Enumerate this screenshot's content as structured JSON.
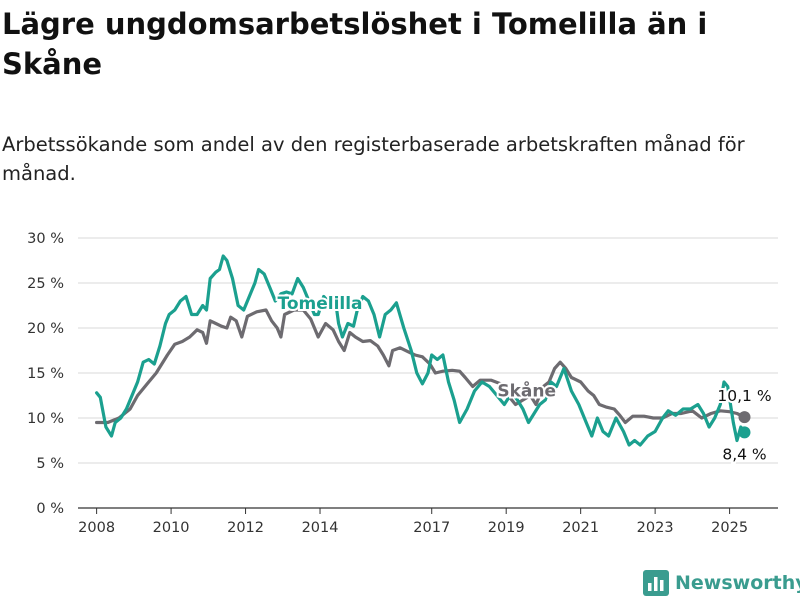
{
  "header": {
    "title": "Lägre ungdomsarbetslöshet i Tomelilla än i Skåne",
    "subtitle": "Arbetssökande som andel av den registerbaserade arbetskraften månad för månad."
  },
  "brand": {
    "name": "Newsworthy",
    "icon": "bar-chart-logo-icon",
    "color": "#3a9c8f"
  },
  "chart_data": {
    "type": "line",
    "ylim": [
      0,
      30
    ],
    "yticks": [
      0,
      5,
      10,
      15,
      20,
      25,
      30
    ],
    "ytick_labels": [
      "0 %",
      "5 %",
      "10 %",
      "15 %",
      "20 %",
      "25 %",
      "30 %"
    ],
    "xlim": [
      2007.5,
      2026.3
    ],
    "xticks": [
      2008,
      2010,
      2012,
      2014,
      2017,
      2019,
      2021,
      2023,
      2025
    ],
    "xtick_labels": [
      "2008",
      "2010",
      "2012",
      "2014",
      "2017",
      "2019",
      "2021",
      "2023",
      "2025"
    ],
    "grid": true,
    "series": [
      {
        "name": "Skåne",
        "color": "#6d6b70",
        "points": [
          [
            2008.0,
            9.5
          ],
          [
            2008.3,
            9.5
          ],
          [
            2008.6,
            10.0
          ],
          [
            2008.9,
            11.0
          ],
          [
            2009.1,
            12.5
          ],
          [
            2009.4,
            14.0
          ],
          [
            2009.6,
            15.0
          ],
          [
            2009.9,
            17.0
          ],
          [
            2010.1,
            18.2
          ],
          [
            2010.3,
            18.5
          ],
          [
            2010.5,
            19.0
          ],
          [
            2010.7,
            19.8
          ],
          [
            2010.85,
            19.5
          ],
          [
            2010.95,
            18.3
          ],
          [
            2011.05,
            20.8
          ],
          [
            2011.2,
            20.5
          ],
          [
            2011.35,
            20.2
          ],
          [
            2011.5,
            20.0
          ],
          [
            2011.6,
            21.2
          ],
          [
            2011.75,
            20.8
          ],
          [
            2011.9,
            19.0
          ],
          [
            2012.05,
            21.3
          ],
          [
            2012.3,
            21.8
          ],
          [
            2012.55,
            22.0
          ],
          [
            2012.7,
            20.8
          ],
          [
            2012.85,
            20.0
          ],
          [
            2012.95,
            19.0
          ],
          [
            2013.05,
            21.5
          ],
          [
            2013.3,
            22.0
          ],
          [
            2013.55,
            22.0
          ],
          [
            2013.75,
            21.0
          ],
          [
            2013.95,
            19.0
          ],
          [
            2014.15,
            20.5
          ],
          [
            2014.35,
            19.8
          ],
          [
            2014.5,
            18.5
          ],
          [
            2014.65,
            17.5
          ],
          [
            2014.8,
            19.5
          ],
          [
            2014.95,
            19.0
          ],
          [
            2015.15,
            18.5
          ],
          [
            2015.35,
            18.6
          ],
          [
            2015.55,
            18.0
          ],
          [
            2015.7,
            17.0
          ],
          [
            2015.85,
            15.8
          ],
          [
            2015.95,
            17.5
          ],
          [
            2016.15,
            17.8
          ],
          [
            2016.35,
            17.4
          ],
          [
            2016.55,
            17.0
          ],
          [
            2016.75,
            16.8
          ],
          [
            2016.95,
            16.0
          ],
          [
            2017.1,
            15.0
          ],
          [
            2017.3,
            15.2
          ],
          [
            2017.55,
            15.3
          ],
          [
            2017.75,
            15.2
          ],
          [
            2017.9,
            14.5
          ],
          [
            2018.1,
            13.5
          ],
          [
            2018.3,
            14.2
          ],
          [
            2018.6,
            14.2
          ],
          [
            2018.85,
            13.8
          ],
          [
            2019.05,
            12.5
          ],
          [
            2019.25,
            11.5
          ],
          [
            2019.45,
            12.0
          ],
          [
            2019.65,
            12.5
          ],
          [
            2019.8,
            11.5
          ],
          [
            2020.0,
            13.5
          ],
          [
            2020.15,
            14.0
          ],
          [
            2020.3,
            15.5
          ],
          [
            2020.45,
            16.2
          ],
          [
            2020.6,
            15.5
          ],
          [
            2020.75,
            14.5
          ],
          [
            2021.0,
            14.0
          ],
          [
            2021.2,
            13.0
          ],
          [
            2021.35,
            12.5
          ],
          [
            2021.5,
            11.5
          ],
          [
            2021.7,
            11.2
          ],
          [
            2021.9,
            11.0
          ],
          [
            2022.05,
            10.3
          ],
          [
            2022.2,
            9.5
          ],
          [
            2022.4,
            10.2
          ],
          [
            2022.7,
            10.2
          ],
          [
            2022.95,
            10.0
          ],
          [
            2023.2,
            10.0
          ],
          [
            2023.45,
            10.5
          ],
          [
            2023.7,
            10.5
          ],
          [
            2024.0,
            10.8
          ],
          [
            2024.25,
            10.0
          ],
          [
            2024.5,
            10.5
          ],
          [
            2024.75,
            10.8
          ],
          [
            2025.0,
            10.7
          ],
          [
            2025.2,
            10.5
          ],
          [
            2025.4,
            10.1
          ]
        ]
      },
      {
        "name": "Tomelilla",
        "color": "#1ba08f",
        "points": [
          [
            2008.0,
            12.8
          ],
          [
            2008.1,
            12.3
          ],
          [
            2008.25,
            9.0
          ],
          [
            2008.4,
            8.0
          ],
          [
            2008.5,
            9.5
          ],
          [
            2008.65,
            10.0
          ],
          [
            2008.8,
            11.0
          ],
          [
            2008.95,
            12.5
          ],
          [
            2009.1,
            14.0
          ],
          [
            2009.25,
            16.2
          ],
          [
            2009.4,
            16.5
          ],
          [
            2009.55,
            16.0
          ],
          [
            2009.7,
            18.0
          ],
          [
            2009.85,
            20.5
          ],
          [
            2009.95,
            21.5
          ],
          [
            2010.1,
            22.0
          ],
          [
            2010.25,
            23.0
          ],
          [
            2010.4,
            23.5
          ],
          [
            2010.55,
            21.5
          ],
          [
            2010.7,
            21.5
          ],
          [
            2010.85,
            22.5
          ],
          [
            2010.95,
            22.0
          ],
          [
            2011.05,
            25.5
          ],
          [
            2011.2,
            26.2
          ],
          [
            2011.3,
            26.5
          ],
          [
            2011.4,
            28.0
          ],
          [
            2011.5,
            27.5
          ],
          [
            2011.65,
            25.5
          ],
          [
            2011.8,
            22.5
          ],
          [
            2011.95,
            22.0
          ],
          [
            2012.1,
            23.5
          ],
          [
            2012.25,
            25.0
          ],
          [
            2012.35,
            26.5
          ],
          [
            2012.5,
            26.0
          ],
          [
            2012.65,
            24.5
          ],
          [
            2012.8,
            23.0
          ],
          [
            2012.95,
            23.8
          ],
          [
            2013.1,
            24.0
          ],
          [
            2013.25,
            23.8
          ],
          [
            2013.4,
            25.5
          ],
          [
            2013.55,
            24.5
          ],
          [
            2013.7,
            23.0
          ],
          [
            2013.85,
            21.5
          ],
          [
            2013.95,
            21.5
          ],
          [
            2014.1,
            23.5
          ],
          [
            2014.25,
            22.8
          ],
          [
            2014.4,
            23.5
          ],
          [
            2014.5,
            20.5
          ],
          [
            2014.6,
            19.0
          ],
          [
            2014.75,
            20.5
          ],
          [
            2014.9,
            20.2
          ],
          [
            2015.0,
            22.0
          ],
          [
            2015.15,
            23.5
          ],
          [
            2015.3,
            23.0
          ],
          [
            2015.45,
            21.5
          ],
          [
            2015.6,
            19.0
          ],
          [
            2015.75,
            21.5
          ],
          [
            2015.9,
            22.0
          ],
          [
            2016.05,
            22.8
          ],
          [
            2016.25,
            20.0
          ],
          [
            2016.45,
            17.5
          ],
          [
            2016.6,
            15.0
          ],
          [
            2016.75,
            13.8
          ],
          [
            2016.9,
            15.0
          ],
          [
            2017.0,
            17.0
          ],
          [
            2017.15,
            16.5
          ],
          [
            2017.3,
            17.0
          ],
          [
            2017.45,
            14.0
          ],
          [
            2017.6,
            12.0
          ],
          [
            2017.75,
            9.5
          ],
          [
            2017.95,
            11.0
          ],
          [
            2018.15,
            13.0
          ],
          [
            2018.35,
            14.0
          ],
          [
            2018.55,
            13.5
          ],
          [
            2018.75,
            12.5
          ],
          [
            2018.95,
            11.5
          ],
          [
            2019.15,
            12.8
          ],
          [
            2019.3,
            12.0
          ],
          [
            2019.45,
            11.0
          ],
          [
            2019.6,
            9.5
          ],
          [
            2019.75,
            10.5
          ],
          [
            2019.9,
            11.5
          ],
          [
            2020.05,
            12.0
          ],
          [
            2020.2,
            14.0
          ],
          [
            2020.35,
            13.5
          ],
          [
            2020.55,
            15.5
          ],
          [
            2020.75,
            13.0
          ],
          [
            2020.95,
            11.5
          ],
          [
            2021.15,
            9.5
          ],
          [
            2021.3,
            8.0
          ],
          [
            2021.45,
            10.0
          ],
          [
            2021.6,
            8.5
          ],
          [
            2021.75,
            8.0
          ],
          [
            2021.95,
            10.0
          ],
          [
            2022.15,
            8.5
          ],
          [
            2022.3,
            7.0
          ],
          [
            2022.45,
            7.5
          ],
          [
            2022.6,
            7.0
          ],
          [
            2022.8,
            8.0
          ],
          [
            2023.0,
            8.5
          ],
          [
            2023.2,
            10.0
          ],
          [
            2023.35,
            10.8
          ],
          [
            2023.55,
            10.3
          ],
          [
            2023.75,
            11.0
          ],
          [
            2023.95,
            11.0
          ],
          [
            2024.15,
            11.5
          ],
          [
            2024.3,
            10.5
          ],
          [
            2024.45,
            9.0
          ],
          [
            2024.6,
            10.0
          ],
          [
            2024.75,
            11.5
          ],
          [
            2024.85,
            14.0
          ],
          [
            2024.95,
            13.5
          ],
          [
            2025.1,
            9.5
          ],
          [
            2025.2,
            7.5
          ],
          [
            2025.3,
            9.0
          ],
          [
            2025.4,
            8.4
          ]
        ]
      }
    ],
    "series_labels": [
      {
        "text": "Tomelilla",
        "x": 2014.0,
        "y": 22.1,
        "color": "#1ba08f"
      },
      {
        "text": "Skåne",
        "x": 2019.55,
        "y": 12.4,
        "color": "#6d6b70"
      }
    ],
    "end_labels": [
      {
        "text": "10,1 %",
        "x": 2025.4,
        "y": 10.1,
        "color": "#6d6b70",
        "position": "above"
      },
      {
        "text": "8,4 %",
        "x": 2025.4,
        "y": 8.4,
        "color": "#1ba08f",
        "position": "below"
      }
    ]
  }
}
